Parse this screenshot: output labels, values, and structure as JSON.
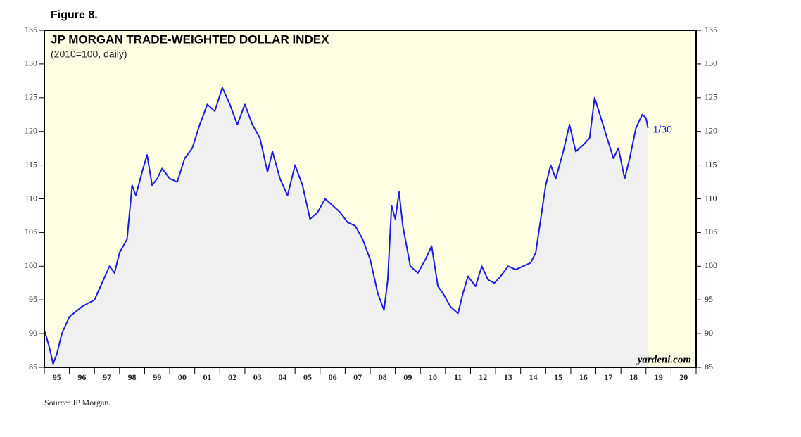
{
  "chart_data": {
    "type": "area-line",
    "figure_label": "Figure 8.",
    "title": "JP MORGAN TRADE-WEIGHTED DOLLAR INDEX",
    "subtitle": "(2010=100, daily)",
    "annotation": "1/30",
    "watermark": "yardeni.com",
    "source": "Source: JP Morgan.",
    "color": "#1c1ce0",
    "area_color": "#f0f0f0",
    "background": "#ffffe4",
    "x": [
      1995.0,
      1995.2,
      1995.35,
      1995.5,
      1995.7,
      1996.0,
      1996.5,
      1997.0,
      1997.3,
      1997.6,
      1997.8,
      1998.0,
      1998.3,
      1998.5,
      1998.65,
      1998.9,
      1999.1,
      1999.3,
      1999.5,
      1999.7,
      2000.0,
      2000.3,
      2000.6,
      2000.9,
      2001.2,
      2001.5,
      2001.8,
      2002.1,
      2002.4,
      2002.7,
      2003.0,
      2003.3,
      2003.6,
      2003.9,
      2004.1,
      2004.4,
      2004.7,
      2005.0,
      2005.3,
      2005.6,
      2005.9,
      2006.2,
      2006.5,
      2006.8,
      2007.1,
      2007.4,
      2007.7,
      2008.0,
      2008.3,
      2008.55,
      2008.7,
      2008.85,
      2009.0,
      2009.15,
      2009.3,
      2009.6,
      2009.9,
      2010.2,
      2010.45,
      2010.7,
      2010.9,
      2011.2,
      2011.5,
      2011.7,
      2011.9,
      2012.2,
      2012.45,
      2012.7,
      2012.95,
      2013.2,
      2013.5,
      2013.8,
      2014.1,
      2014.4,
      2014.6,
      2014.8,
      2015.0,
      2015.2,
      2015.4,
      2015.7,
      2015.95,
      2016.2,
      2016.5,
      2016.75,
      2016.95,
      2017.2,
      2017.45,
      2017.7,
      2017.9,
      2018.15,
      2018.35,
      2018.6,
      2018.85,
      2019.0,
      2019.08
    ],
    "values": [
      90.5,
      88,
      85.5,
      87,
      90,
      92.5,
      94,
      95,
      97.5,
      100,
      99,
      102,
      104,
      112,
      110.5,
      114,
      116.5,
      112,
      113,
      114.5,
      113,
      112.5,
      116,
      117.5,
      121,
      124,
      123,
      126.5,
      124,
      121,
      124,
      121,
      119,
      114,
      117,
      113,
      110.5,
      115,
      112,
      107,
      108,
      110,
      109,
      108,
      106.5,
      106,
      104,
      101,
      96,
      93.5,
      98,
      109,
      107,
      111,
      106,
      100,
      99,
      101,
      103,
      97,
      96,
      94,
      93,
      96,
      98.5,
      97,
      100,
      98,
      97.5,
      98.5,
      100,
      99.5,
      100,
      100.5,
      102,
      107,
      112,
      115,
      113,
      117,
      121,
      117,
      118,
      119,
      125,
      122,
      119,
      116,
      117.5,
      113,
      116,
      120.5,
      122.5,
      122,
      120.5
    ],
    "xlim": [
      1995,
      2021
    ],
    "xticks": [
      1995,
      1996,
      1997,
      1998,
      1999,
      2000,
      2001,
      2002,
      2003,
      2004,
      2005,
      2006,
      2007,
      2008,
      2009,
      2010,
      2011,
      2012,
      2013,
      2014,
      2015,
      2016,
      2017,
      2018,
      2019,
      2020,
      2021
    ],
    "xtick_labels": [
      {
        "value": 1995.5,
        "label": "95"
      },
      {
        "value": 1996.5,
        "label": "96"
      },
      {
        "value": 1997.5,
        "label": "97"
      },
      {
        "value": 1998.5,
        "label": "98"
      },
      {
        "value": 1999.5,
        "label": "99"
      },
      {
        "value": 2000.5,
        "label": "00"
      },
      {
        "value": 2001.5,
        "label": "01"
      },
      {
        "value": 2002.5,
        "label": "02"
      },
      {
        "value": 2003.5,
        "label": "03"
      },
      {
        "value": 2004.5,
        "label": "04"
      },
      {
        "value": 2005.5,
        "label": "05"
      },
      {
        "value": 2006.5,
        "label": "06"
      },
      {
        "value": 2007.5,
        "label": "07"
      },
      {
        "value": 2008.5,
        "label": "08"
      },
      {
        "value": 2009.5,
        "label": "09"
      },
      {
        "value": 2010.5,
        "label": "10"
      },
      {
        "value": 2011.5,
        "label": "11"
      },
      {
        "value": 2012.5,
        "label": "12"
      },
      {
        "value": 2013.5,
        "label": "13"
      },
      {
        "value": 2014.5,
        "label": "14"
      },
      {
        "value": 2015.5,
        "label": "15"
      },
      {
        "value": 2016.5,
        "label": "16"
      },
      {
        "value": 2017.5,
        "label": "17"
      },
      {
        "value": 2018.5,
        "label": "18"
      },
      {
        "value": 2019.5,
        "label": "19"
      },
      {
        "value": 2020.5,
        "label": "20"
      }
    ],
    "ylim": [
      85,
      135
    ],
    "yticks": [
      85,
      90,
      95,
      100,
      105,
      110,
      115,
      120,
      125,
      130,
      135
    ]
  }
}
